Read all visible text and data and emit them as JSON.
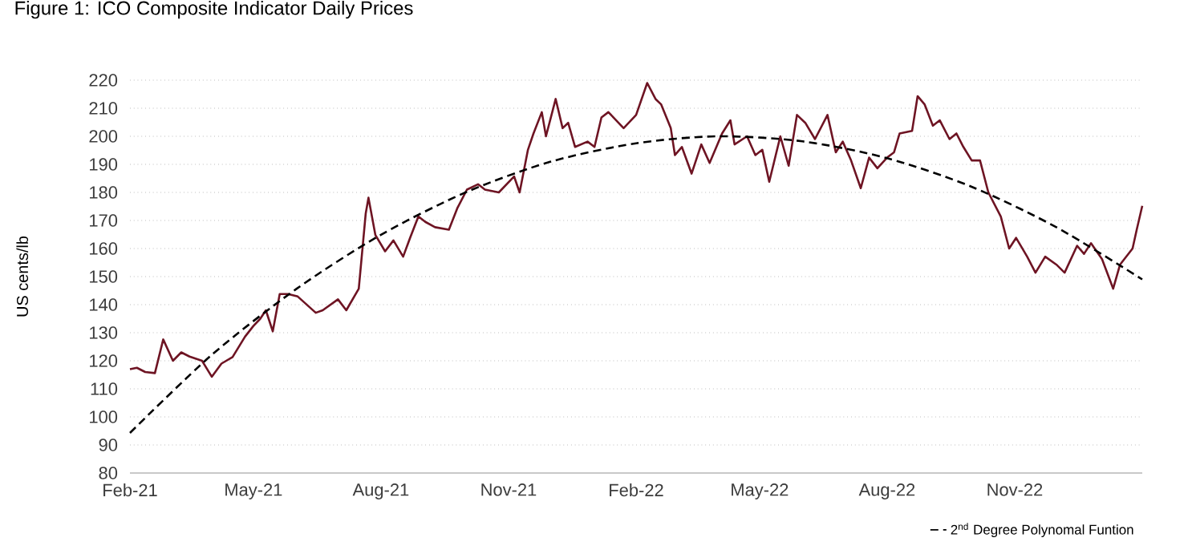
{
  "chart_data": {
    "type": "line",
    "title": "Figure 1: ICO Composite Indicator Daily Prices",
    "ylabel": "US cents/lb",
    "xlim": [
      "2021-02-01",
      "2023-02-01"
    ],
    "xticks": [
      {
        "value": "2021-02-01",
        "label": "Feb-21"
      },
      {
        "value": "2021-05-01",
        "label": "May-21"
      },
      {
        "value": "2021-08-01",
        "label": "Aug-21"
      },
      {
        "value": "2021-11-01",
        "label": "Nov-21"
      },
      {
        "value": "2022-02-01",
        "label": "Feb-22"
      },
      {
        "value": "2022-05-01",
        "label": "May-22"
      },
      {
        "value": "2022-08-01",
        "label": "Aug-22"
      },
      {
        "value": "2022-11-01",
        "label": "Nov-22"
      }
    ],
    "ylim": [
      80,
      220
    ],
    "yticks": [
      80,
      90,
      100,
      110,
      120,
      130,
      140,
      150,
      160,
      170,
      180,
      190,
      200,
      210,
      220
    ],
    "grid": "y",
    "legend": "bottom right",
    "marker": "none",
    "series": [
      {
        "color": "#6e1423",
        "line_style": "solid",
        "x": [
          "2021-02-01",
          "2021-02-06",
          "2021-02-12",
          "2021-02-19",
          "2021-02-25",
          "2021-03-04",
          "2021-03-10",
          "2021-03-16",
          "2021-03-25",
          "2021-04-01",
          "2021-04-08",
          "2021-04-16",
          "2021-04-25",
          "2021-05-01",
          "2021-05-06",
          "2021-05-10",
          "2021-05-15",
          "2021-05-20",
          "2021-05-26",
          "2021-06-02",
          "2021-06-15",
          "2021-06-20",
          "2021-07-01",
          "2021-07-07",
          "2021-07-16",
          "2021-07-21",
          "2021-07-23",
          "2021-07-28",
          "2021-08-04",
          "2021-08-10",
          "2021-08-17",
          "2021-08-22",
          "2021-08-28",
          "2021-09-02",
          "2021-09-09",
          "2021-09-19",
          "2021-09-25",
          "2021-10-02",
          "2021-10-10",
          "2021-10-15",
          "2021-10-25",
          "2021-11-05",
          "2021-11-09",
          "2021-11-15",
          "2021-11-19",
          "2021-11-25",
          "2021-11-28",
          "2021-12-05",
          "2021-12-10",
          "2021-12-14",
          "2021-12-19",
          "2021-12-28",
          "2022-01-02",
          "2022-01-07",
          "2022-01-12",
          "2022-01-23",
          "2022-02-01",
          "2022-02-09",
          "2022-02-15",
          "2022-02-19",
          "2022-02-26",
          "2022-03-01",
          "2022-03-06",
          "2022-03-13",
          "2022-03-20",
          "2022-03-26",
          "2022-04-04",
          "2022-04-10",
          "2022-04-13",
          "2022-04-22",
          "2022-04-28",
          "2022-05-03",
          "2022-05-08",
          "2022-05-16",
          "2022-05-22",
          "2022-05-28",
          "2022-06-03",
          "2022-06-10",
          "2022-06-19",
          "2022-06-25",
          "2022-06-30",
          "2022-07-06",
          "2022-07-13",
          "2022-07-19",
          "2022-07-25",
          "2022-08-01",
          "2022-08-06",
          "2022-08-10",
          "2022-08-19",
          "2022-08-23",
          "2022-08-28",
          "2022-09-03",
          "2022-09-08",
          "2022-09-15",
          "2022-09-20",
          "2022-09-25",
          "2022-10-01",
          "2022-10-07",
          "2022-10-13",
          "2022-10-22",
          "2022-10-28",
          "2022-11-02",
          "2022-11-10",
          "2022-11-16",
          "2022-11-23",
          "2022-12-01",
          "2022-12-07",
          "2022-12-16",
          "2022-12-21",
          "2022-12-26",
          "2023-01-03",
          "2023-01-11",
          "2023-01-16",
          "2023-01-25",
          "2023-01-28",
          "2023-02-01"
        ],
        "values": [
          117,
          117.5,
          116,
          115.6,
          127.6,
          120,
          123,
          121.5,
          120,
          114.3,
          119,
          121.3,
          128.6,
          132.4,
          135,
          138,
          130.5,
          143.8,
          143.8,
          142.9,
          137.1,
          138,
          141.9,
          138,
          145.7,
          172.4,
          178.1,
          164.8,
          159,
          162.9,
          157.1,
          163.8,
          171.4,
          169.5,
          167.6,
          166.7,
          174.3,
          181,
          182.9,
          181,
          180,
          185.7,
          180,
          195.2,
          201,
          208.6,
          200,
          213.3,
          202.9,
          204.8,
          196.2,
          198.1,
          196.2,
          206.7,
          208.6,
          202.9,
          207.6,
          219,
          213.3,
          211.4,
          202.9,
          193.3,
          196.2,
          186.7,
          197.1,
          190.5,
          201,
          205.7,
          197.1,
          200,
          193.3,
          195.2,
          183.8,
          200,
          189.5,
          207.6,
          204.8,
          199,
          207.6,
          194.3,
          198.1,
          191.4,
          181.5,
          192.4,
          188.6,
          192.4,
          194.3,
          201,
          201.9,
          214.3,
          211.4,
          203.8,
          205.7,
          199,
          201,
          196.2,
          191.4,
          191.4,
          180,
          171.4,
          160,
          163.8,
          157.1,
          151.4,
          157.1,
          154.3,
          151.4,
          161,
          158.1,
          161.9,
          156.2,
          145.7,
          154.3,
          160,
          166.7,
          175.2
        ]
      },
      {
        "name": "2$^{nd}$ Degree Polynomal Funtion",
        "color": "#000000",
        "line_style": "dashed",
        "x": [
          "2021-02-01",
          "2021-04-01",
          "2021-06-01",
          "2021-08-01",
          "2021-10-01",
          "2021-12-01",
          "2022-02-01",
          "2022-04-01",
          "2022-06-01",
          "2022-08-01",
          "2022-10-01",
          "2022-12-01",
          "2023-02-01"
        ],
        "values": [
          94.3,
          122.1,
          145.6,
          164.9,
          180,
          190.9,
          197.5,
          200,
          198.2,
          192.2,
          182,
          167.6,
          149
        ]
      }
    ]
  }
}
